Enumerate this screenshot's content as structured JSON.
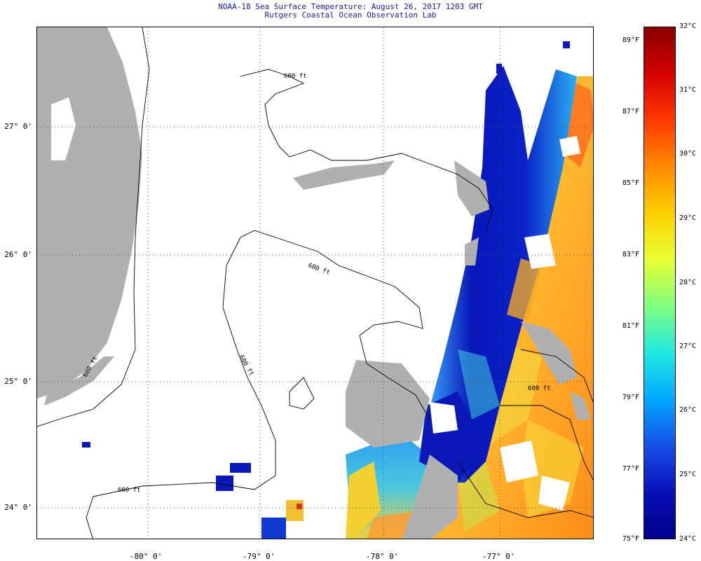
{
  "title": "NOAA-18 Sea Surface Temperature:  August 26, 2017 1203 GMT",
  "subtitle": "Rutgers Coastal Ocean Observation Lab",
  "lat_labels": [
    "27° 0'",
    "26° 0'",
    "25° 0'",
    "24° 0'"
  ],
  "lon_labels": [
    "-80° 0'",
    "-79° 0'",
    "-78° 0'",
    "-77° 0'"
  ],
  "contour_labels": [
    "600 ft",
    "600 ft",
    "600 ft",
    "600 ft",
    "600 ft",
    "600 ft"
  ],
  "colorbar": {
    "fahrenheit": [
      "89°F",
      "87°F",
      "85°F",
      "83°F",
      "81°F",
      "79°F",
      "77°F",
      "75°F"
    ],
    "celsius": [
      "32°C",
      "31°C",
      "30°C",
      "29°C",
      "28°C",
      "27°C",
      "26°C",
      "25°C",
      "24°C"
    ],
    "colors": [
      "#8b0000",
      "#d40000",
      "#ff3a00",
      "#ff8a00",
      "#ffd000",
      "#e8ff30",
      "#7fff7f",
      "#20e8e0",
      "#00a8ff",
      "#1650e8",
      "#0a10b8",
      "#00008b"
    ]
  },
  "colors": {
    "land": "#b0b0b0",
    "sst_blue": "#1226c8",
    "sst_cyan": "#30b8f0",
    "sst_orange": "#ff9a20",
    "sst_yellow": "#f4e030"
  }
}
